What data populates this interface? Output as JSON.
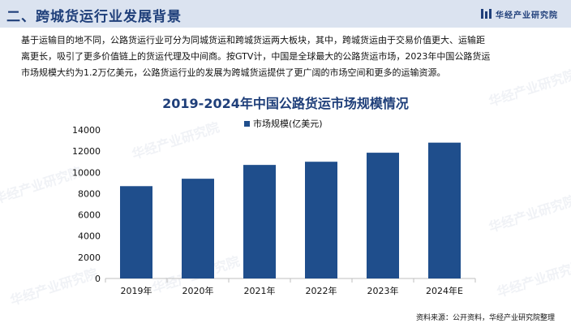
{
  "header": {
    "title": "二、跨城货运行业发展背景",
    "brand": "华经产业研究院"
  },
  "intro_lines": [
    "基于运输目的地不同，公路货运行业可分为同城货运和跨城货运两大板块，其中，跨城货运由于交易价值更大、运输距",
    "离更长，吸引了更多价值链上的货运代理及中间商。按GTV计，中国是全球最大的公路货运市场，2023年中国公路货运",
    "市场规模大约为1.2万亿美元，公路货运行业的发展为跨城货运提供了更广阔的市场空间和更多的运输资源。"
  ],
  "watermark_text": "华经产业研究院",
  "source": "资料来源：公开资料，华经产业研究院整理",
  "colors": {
    "accent": "#1f4e8c",
    "header_bg": "#dbe3f0",
    "title": "#1f3f7a"
  },
  "chart_data": {
    "type": "bar",
    "title": "2019-2024年中国公路货运市场规模情况",
    "categories": [
      "2019年",
      "2020年",
      "2021年",
      "2022年",
      "2023年",
      "2024年E"
    ],
    "series": [
      {
        "name": "市场规模(亿美元)",
        "values": [
          8700,
          9400,
          10700,
          11000,
          11850,
          12800
        ]
      }
    ],
    "ylim": [
      0,
      14000
    ],
    "yticks": [
      0,
      2000,
      4000,
      6000,
      8000,
      10000,
      12000,
      14000
    ],
    "xlabel": "",
    "ylabel": "",
    "grid": false,
    "legend": "top-center"
  }
}
